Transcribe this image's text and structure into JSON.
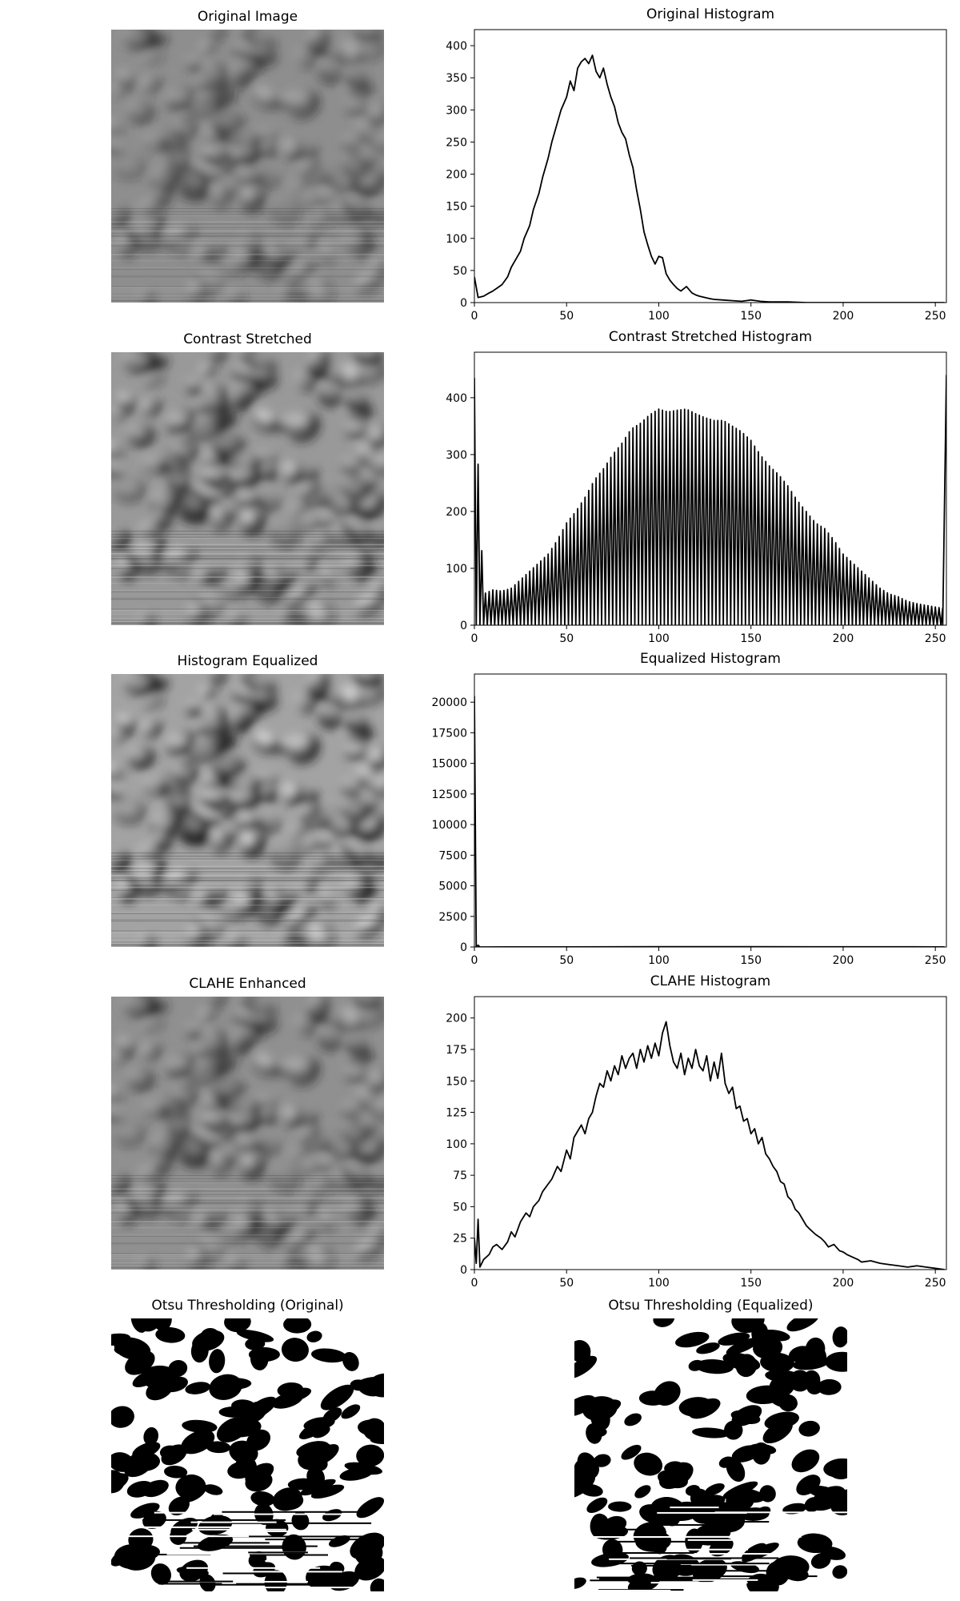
{
  "panels": {
    "original_image": {
      "title": "Original Image"
    },
    "contrast_stretched": {
      "title": "Contrast Stretched"
    },
    "histogram_equalized": {
      "title": "Histogram Equalized"
    },
    "clahe_enhanced": {
      "title": "CLAHE Enhanced"
    },
    "otsu_original": {
      "title": "Otsu Thresholding (Original)"
    },
    "otsu_equalized": {
      "title": "Otsu Thresholding (Equalized)"
    }
  },
  "image_style": {
    "gray_background": "#8a8a8a",
    "blob_dark": "#1a1a1a",
    "blob_light": "#e6e6e6",
    "binary_black": "#000000",
    "binary_white": "#ffffff"
  },
  "chart_data": [
    {
      "id": "original_histogram",
      "type": "line",
      "title": "Original Histogram",
      "xlabel": "",
      "ylabel": "",
      "xlim": [
        0,
        256
      ],
      "ylim": [
        0,
        425
      ],
      "xticks": [
        0,
        50,
        100,
        150,
        200,
        250
      ],
      "yticks": [
        0,
        50,
        100,
        150,
        200,
        250,
        300,
        350,
        400
      ],
      "line_color": "#000000",
      "grid": false,
      "points": [
        [
          0,
          40
        ],
        [
          2,
          8
        ],
        [
          5,
          10
        ],
        [
          8,
          15
        ],
        [
          10,
          18
        ],
        [
          12,
          22
        ],
        [
          15,
          28
        ],
        [
          18,
          40
        ],
        [
          20,
          55
        ],
        [
          22,
          65
        ],
        [
          25,
          80
        ],
        [
          27,
          100
        ],
        [
          30,
          120
        ],
        [
          32,
          145
        ],
        [
          35,
          170
        ],
        [
          37,
          195
        ],
        [
          40,
          225
        ],
        [
          42,
          250
        ],
        [
          45,
          280
        ],
        [
          47,
          300
        ],
        [
          50,
          320
        ],
        [
          52,
          345
        ],
        [
          54,
          330
        ],
        [
          56,
          365
        ],
        [
          58,
          375
        ],
        [
          60,
          380
        ],
        [
          62,
          372
        ],
        [
          64,
          385
        ],
        [
          66,
          360
        ],
        [
          68,
          350
        ],
        [
          70,
          365
        ],
        [
          72,
          340
        ],
        [
          74,
          320
        ],
        [
          76,
          305
        ],
        [
          78,
          280
        ],
        [
          80,
          265
        ],
        [
          82,
          255
        ],
        [
          84,
          230
        ],
        [
          86,
          210
        ],
        [
          88,
          175
        ],
        [
          90,
          145
        ],
        [
          92,
          110
        ],
        [
          94,
          90
        ],
        [
          96,
          72
        ],
        [
          98,
          60
        ],
        [
          100,
          72
        ],
        [
          102,
          70
        ],
        [
          104,
          45
        ],
        [
          106,
          35
        ],
        [
          108,
          28
        ],
        [
          110,
          22
        ],
        [
          112,
          18
        ],
        [
          115,
          25
        ],
        [
          118,
          15
        ],
        [
          120,
          12
        ],
        [
          122,
          10
        ],
        [
          125,
          8
        ],
        [
          128,
          6
        ],
        [
          130,
          5
        ],
        [
          135,
          4
        ],
        [
          140,
          3
        ],
        [
          145,
          2
        ],
        [
          150,
          4
        ],
        [
          155,
          2
        ],
        [
          160,
          1
        ],
        [
          170,
          1
        ],
        [
          180,
          0
        ],
        [
          200,
          0
        ],
        [
          220,
          0
        ],
        [
          240,
          0
        ],
        [
          255,
          0
        ]
      ]
    },
    {
      "id": "contrast_stretched_histogram",
      "type": "line",
      "title": "Contrast Stretched Histogram",
      "xlabel": "",
      "ylabel": "",
      "xlim": [
        0,
        256
      ],
      "ylim": [
        0,
        480
      ],
      "xticks": [
        0,
        50,
        100,
        150,
        200,
        250
      ],
      "yticks": [
        0,
        100,
        200,
        300,
        400
      ],
      "line_color": "#000000",
      "grid": false,
      "spike_spacing": 2,
      "peaks": [
        [
          0,
          435
        ],
        [
          5,
          55
        ],
        [
          10,
          62
        ],
        [
          15,
          60
        ],
        [
          20,
          65
        ],
        [
          25,
          80
        ],
        [
          30,
          95
        ],
        [
          35,
          110
        ],
        [
          40,
          125
        ],
        [
          45,
          150
        ],
        [
          50,
          180
        ],
        [
          55,
          200
        ],
        [
          60,
          225
        ],
        [
          65,
          255
        ],
        [
          70,
          275
        ],
        [
          75,
          300
        ],
        [
          80,
          320
        ],
        [
          85,
          345
        ],
        [
          90,
          355
        ],
        [
          95,
          370
        ],
        [
          100,
          380
        ],
        [
          105,
          375
        ],
        [
          110,
          378
        ],
        [
          115,
          380
        ],
        [
          120,
          372
        ],
        [
          125,
          365
        ],
        [
          130,
          360
        ],
        [
          135,
          360
        ],
        [
          140,
          350
        ],
        [
          145,
          340
        ],
        [
          150,
          325
        ],
        [
          155,
          300
        ],
        [
          160,
          280
        ],
        [
          165,
          265
        ],
        [
          170,
          245
        ],
        [
          175,
          220
        ],
        [
          180,
          200
        ],
        [
          185,
          180
        ],
        [
          190,
          170
        ],
        [
          195,
          150
        ],
        [
          200,
          125
        ],
        [
          205,
          110
        ],
        [
          210,
          95
        ],
        [
          215,
          80
        ],
        [
          220,
          65
        ],
        [
          225,
          55
        ],
        [
          230,
          50
        ],
        [
          235,
          42
        ],
        [
          240,
          38
        ],
        [
          245,
          35
        ],
        [
          250,
          32
        ],
        [
          254,
          30
        ],
        [
          256,
          440
        ]
      ]
    },
    {
      "id": "equalized_histogram",
      "type": "line",
      "title": "Equalized Histogram",
      "xlabel": "",
      "ylabel": "",
      "xlim": [
        0,
        256
      ],
      "ylim": [
        0,
        22300
      ],
      "xticks": [
        0,
        50,
        100,
        150,
        200,
        250
      ],
      "yticks": [
        0,
        2500,
        5000,
        7500,
        10000,
        12500,
        15000,
        17500,
        20000
      ],
      "line_color": "#000000",
      "grid": false,
      "points": [
        [
          0,
          20500
        ],
        [
          1,
          0
        ],
        [
          2,
          150
        ],
        [
          3,
          0
        ],
        [
          50,
          10
        ],
        [
          100,
          20
        ],
        [
          150,
          20
        ],
        [
          200,
          15
        ],
        [
          250,
          10
        ],
        [
          255,
          5
        ]
      ]
    },
    {
      "id": "clahe_histogram",
      "type": "line",
      "title": "CLAHE Histogram",
      "xlabel": "",
      "ylabel": "",
      "xlim": [
        0,
        256
      ],
      "ylim": [
        0,
        217
      ],
      "xticks": [
        0,
        50,
        100,
        150,
        200,
        250
      ],
      "yticks": [
        0,
        25,
        50,
        75,
        100,
        125,
        150,
        175,
        200
      ],
      "line_color": "#000000",
      "grid": false,
      "points": [
        [
          0,
          25
        ],
        [
          1,
          5
        ],
        [
          2,
          40
        ],
        [
          3,
          2
        ],
        [
          5,
          8
        ],
        [
          8,
          12
        ],
        [
          10,
          18
        ],
        [
          12,
          20
        ],
        [
          15,
          16
        ],
        [
          18,
          22
        ],
        [
          20,
          30
        ],
        [
          22,
          26
        ],
        [
          25,
          38
        ],
        [
          28,
          45
        ],
        [
          30,
          42
        ],
        [
          32,
          50
        ],
        [
          35,
          55
        ],
        [
          37,
          62
        ],
        [
          40,
          68
        ],
        [
          42,
          72
        ],
        [
          45,
          82
        ],
        [
          47,
          78
        ],
        [
          50,
          95
        ],
        [
          52,
          88
        ],
        [
          54,
          105
        ],
        [
          56,
          110
        ],
        [
          58,
          115
        ],
        [
          60,
          108
        ],
        [
          62,
          120
        ],
        [
          64,
          125
        ],
        [
          66,
          138
        ],
        [
          68,
          148
        ],
        [
          70,
          145
        ],
        [
          72,
          158
        ],
        [
          74,
          150
        ],
        [
          76,
          162
        ],
        [
          78,
          155
        ],
        [
          80,
          170
        ],
        [
          82,
          160
        ],
        [
          84,
          168
        ],
        [
          86,
          172
        ],
        [
          88,
          160
        ],
        [
          90,
          175
        ],
        [
          92,
          165
        ],
        [
          94,
          178
        ],
        [
          96,
          168
        ],
        [
          98,
          180
        ],
        [
          100,
          170
        ],
        [
          102,
          188
        ],
        [
          104,
          197
        ],
        [
          106,
          178
        ],
        [
          108,
          165
        ],
        [
          110,
          160
        ],
        [
          112,
          172
        ],
        [
          114,
          155
        ],
        [
          116,
          168
        ],
        [
          118,
          160
        ],
        [
          120,
          175
        ],
        [
          122,
          162
        ],
        [
          124,
          158
        ],
        [
          126,
          170
        ],
        [
          128,
          150
        ],
        [
          130,
          165
        ],
        [
          132,
          152
        ],
        [
          134,
          172
        ],
        [
          136,
          148
        ],
        [
          138,
          140
        ],
        [
          140,
          145
        ],
        [
          142,
          128
        ],
        [
          144,
          130
        ],
        [
          146,
          118
        ],
        [
          148,
          120
        ],
        [
          150,
          108
        ],
        [
          152,
          112
        ],
        [
          154,
          100
        ],
        [
          156,
          105
        ],
        [
          158,
          92
        ],
        [
          160,
          88
        ],
        [
          162,
          82
        ],
        [
          164,
          78
        ],
        [
          166,
          70
        ],
        [
          168,
          68
        ],
        [
          170,
          58
        ],
        [
          172,
          55
        ],
        [
          174,
          48
        ],
        [
          176,
          45
        ],
        [
          178,
          40
        ],
        [
          180,
          35
        ],
        [
          182,
          32
        ],
        [
          185,
          28
        ],
        [
          188,
          25
        ],
        [
          190,
          22
        ],
        [
          192,
          18
        ],
        [
          195,
          20
        ],
        [
          198,
          15
        ],
        [
          200,
          14
        ],
        [
          202,
          12
        ],
        [
          205,
          10
        ],
        [
          208,
          8
        ],
        [
          210,
          6
        ],
        [
          215,
          7
        ],
        [
          220,
          5
        ],
        [
          225,
          4
        ],
        [
          230,
          3
        ],
        [
          235,
          2
        ],
        [
          240,
          3
        ],
        [
          245,
          2
        ],
        [
          250,
          1
        ],
        [
          255,
          0
        ]
      ]
    }
  ]
}
